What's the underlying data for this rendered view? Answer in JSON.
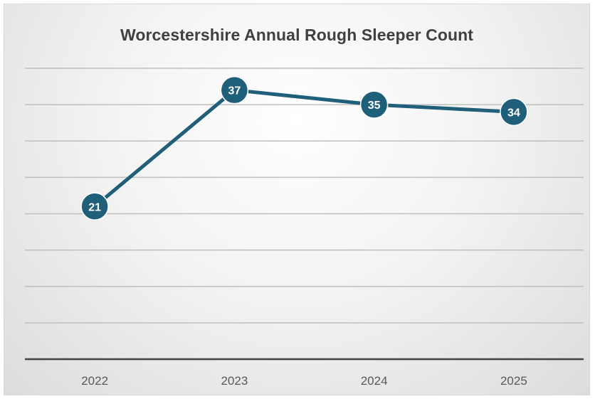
{
  "chart_data": {
    "type": "line",
    "title": "Worcestershire Annual Rough Sleeper Count",
    "categories": [
      "2022",
      "2023",
      "2024",
      "2025"
    ],
    "series": [
      {
        "values": [
          21,
          37,
          35,
          34
        ]
      }
    ],
    "ylim": [
      0,
      40
    ],
    "gridlines": true,
    "show_y_axis_labels": false,
    "data_labels": true,
    "line_color": "#1f5f7a",
    "marker_color": "#1f5f7a",
    "grid_color": "#bfbfbf",
    "axis_color": "#404040"
  }
}
